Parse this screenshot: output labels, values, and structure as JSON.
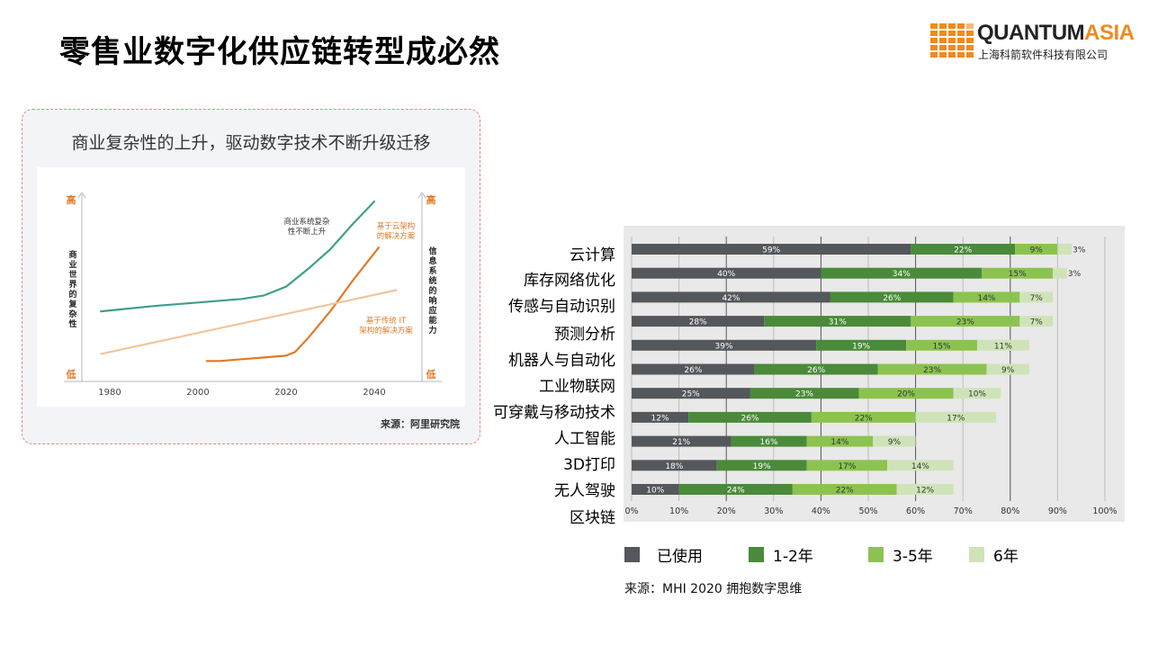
{
  "slide": {
    "title": "零售业数字化供应链转型成必然"
  },
  "logo": {
    "name_part1": "QUANTUM",
    "name_part2": "ASIA",
    "subtitle": "上海科箭软件科技有限公司"
  },
  "left_panel": {
    "title": "商业复杂性的上升，驱动数字技术不断升级迁移",
    "source": "来源：阿里研究院"
  },
  "source": "来源：MHI 2020 拥抱数字思维",
  "chart_data": [
    {
      "type": "line",
      "title": "商业复杂性的上升，驱动数字技术不断升级迁移",
      "x_ticks": [
        "1980",
        "2000",
        "2020",
        "2040"
      ],
      "y_left_label": "商业世界的复杂性",
      "y_right_label": "信息系统的响应能力",
      "y_high": "高",
      "y_low": "低",
      "series": [
        {
          "name": "商业系统复杂性不断上升",
          "color": "#3f9e8a",
          "x": [
            1978,
            1990,
            2000,
            2010,
            2015,
            2020,
            2025,
            2030,
            2035,
            2040
          ],
          "y": [
            0.38,
            0.41,
            0.43,
            0.45,
            0.47,
            0.52,
            0.62,
            0.73,
            0.87,
            1.0
          ]
        },
        {
          "name": "基于云架构的解决方案",
          "color": "#e07a27",
          "x": [
            2002,
            2005,
            2010,
            2015,
            2020,
            2022,
            2025,
            2030,
            2035,
            2041
          ],
          "y": [
            0.1,
            0.1,
            0.11,
            0.12,
            0.13,
            0.15,
            0.23,
            0.38,
            0.55,
            0.74
          ]
        },
        {
          "name": "基于传统 IT 架构的解决方案",
          "color": "#f2c59c",
          "x": [
            1978,
            2045
          ],
          "y": [
            0.14,
            0.5
          ]
        }
      ]
    },
    {
      "type": "bar",
      "stacked": true,
      "orientation": "horizontal",
      "categories": [
        "云计算",
        "库存网络优化",
        "传感与自动识别",
        "预测分析",
        "机器人与自动化",
        "工业物联网",
        "可穿戴与移动技术",
        "人工智能",
        "3D打印",
        "无人驾驶",
        "区块链"
      ],
      "x_ticks": [
        "0%",
        "10%",
        "20%",
        "30%",
        "40%",
        "50%",
        "60%",
        "70%",
        "80%",
        "90%",
        "100%"
      ],
      "xlim": [
        0,
        100
      ],
      "series": [
        {
          "name": "已使用",
          "color": "#54575b",
          "values": [
            59,
            40,
            42,
            28,
            39,
            26,
            25,
            12,
            21,
            18,
            10
          ],
          "labels": [
            "59%",
            "40%",
            "42%",
            "28%",
            "39%",
            "26%",
            "25%",
            "12%",
            "21%",
            "18%",
            "10%"
          ]
        },
        {
          "name": "1-2年",
          "color": "#4a8a3a",
          "values": [
            22,
            34,
            26,
            31,
            19,
            26,
            23,
            26,
            16,
            19,
            24
          ],
          "labels": [
            "22%",
            "34%",
            "26%",
            "31%",
            "19%",
            "26%",
            "23%",
            "26%",
            "16%",
            "19%",
            "24%"
          ]
        },
        {
          "name": "3-5年",
          "color": "#8cc34f",
          "values": [
            9,
            15,
            14,
            23,
            15,
            23,
            20,
            22,
            14,
            17,
            22
          ],
          "labels": [
            "9%",
            "15%",
            "14%",
            "23%",
            "15%",
            "23%",
            "20%",
            "22%",
            "14%",
            "17%",
            "22%"
          ]
        },
        {
          "name": "6年",
          "color": "#cfe3b8",
          "values": [
            3,
            3,
            7,
            7,
            11,
            9,
            10,
            17,
            9,
            14,
            12
          ],
          "labels": [
            "3%",
            "3%",
            "7%",
            "7%",
            "11%",
            "9%",
            "10%",
            "17%",
            "9%",
            "14%",
            "12%"
          ]
        }
      ]
    }
  ]
}
